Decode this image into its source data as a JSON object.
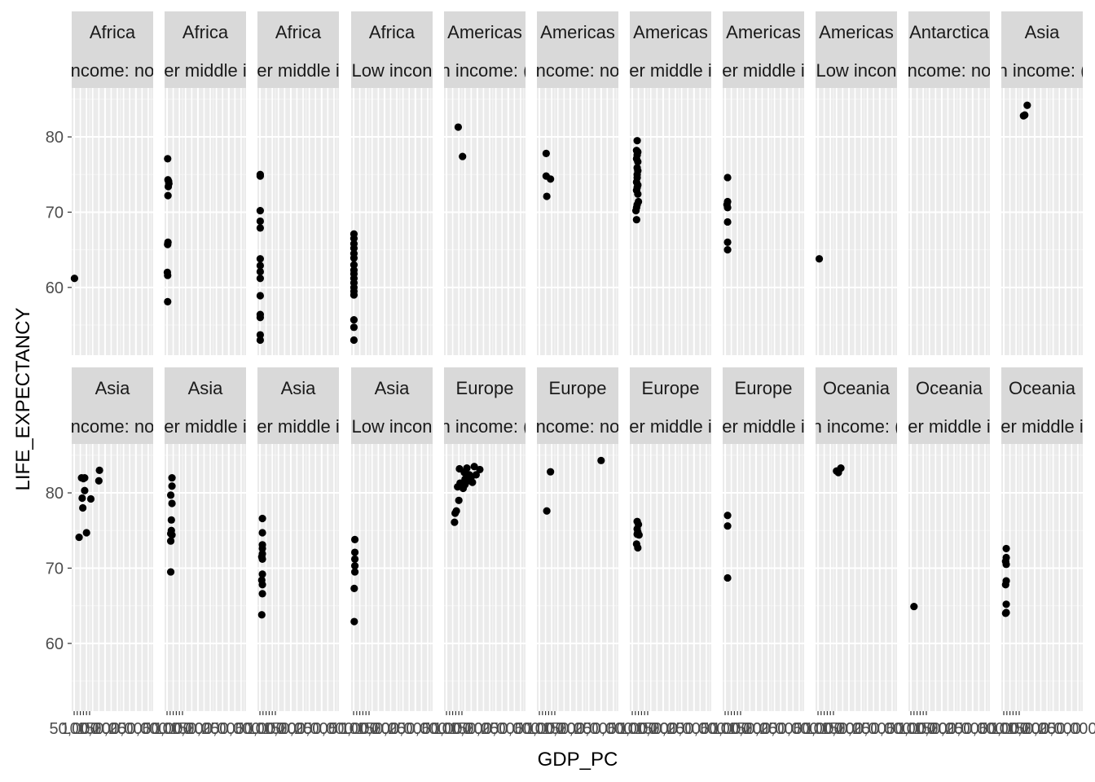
{
  "chart_data": {
    "type": "scatter",
    "title": "",
    "xlabel": "GDP_PC",
    "ylabel": "LIFE_EXPECTANCY",
    "ylim": [
      51,
      86.5
    ],
    "xlim": [
      -4000,
      128000
    ],
    "y_ticks": [
      60,
      70,
      80
    ],
    "x_tick_labels_overlapping": [
      "50,000",
      "100,000",
      "150,000",
      "200,000",
      "250,000"
    ],
    "x_tick_values": [
      0,
      50000,
      100000
    ],
    "grid": true,
    "facet_layout": {
      "rows": 2,
      "cols": 11
    },
    "panels": [
      {
        "region": "Africa",
        "income": "High income: nonOECD",
        "income_shown": "ncome: no",
        "points": [
          [
            500,
            61.2
          ]
        ]
      },
      {
        "region": "Africa",
        "income": "Upper middle income",
        "income_shown": "er middle i",
        "points": [
          [
            1000,
            77.1
          ],
          [
            1500,
            74.3
          ],
          [
            2500,
            74.1
          ],
          [
            3000,
            73.8
          ],
          [
            2000,
            73.4
          ],
          [
            1500,
            72.2
          ],
          [
            1500,
            66.0
          ],
          [
            1000,
            65.7
          ],
          [
            500,
            62.0
          ],
          [
            1000,
            61.6
          ],
          [
            1000,
            58.1
          ]
        ]
      },
      {
        "region": "Africa",
        "income": "Lower middle income",
        "income_shown": "er middle i",
        "points": [
          [
            500,
            75.0
          ],
          [
            500,
            74.8
          ],
          [
            500,
            70.2
          ],
          [
            500,
            68.8
          ],
          [
            500,
            67.9
          ],
          [
            500,
            63.8
          ],
          [
            500,
            62.9
          ],
          [
            500,
            62.1
          ],
          [
            500,
            61.2
          ],
          [
            500,
            58.9
          ],
          [
            500,
            56.4
          ],
          [
            500,
            56.0
          ],
          [
            500,
            53.7
          ],
          [
            500,
            53.0
          ]
        ]
      },
      {
        "region": "Africa",
        "income": "Low income",
        "income_shown": "Low incon",
        "points": [
          [
            500,
            67.1
          ],
          [
            500,
            66.5
          ],
          [
            500,
            65.8
          ],
          [
            500,
            65.2
          ],
          [
            500,
            64.5
          ],
          [
            500,
            63.9
          ],
          [
            500,
            63.0
          ],
          [
            500,
            62.3
          ],
          [
            500,
            61.8
          ],
          [
            500,
            61.2
          ],
          [
            500,
            60.6
          ],
          [
            500,
            60.0
          ],
          [
            500,
            59.5
          ],
          [
            500,
            59.0
          ],
          [
            500,
            55.7
          ],
          [
            500,
            54.7
          ],
          [
            500,
            53.0
          ]
        ]
      },
      {
        "region": "Americas",
        "income": "High income: OECD",
        "income_shown": "n income: (",
        "points": [
          [
            19000,
            81.3
          ],
          [
            26000,
            77.4
          ]
        ]
      },
      {
        "region": "Americas",
        "income": "High income: nonOECD",
        "income_shown": "ncome: no",
        "points": [
          [
            11000,
            77.8
          ],
          [
            11000,
            74.8
          ],
          [
            18000,
            74.4
          ],
          [
            12000,
            72.1
          ]
        ]
      },
      {
        "region": "Americas",
        "income": "Upper middle income",
        "income_shown": "er middle i",
        "points": [
          [
            8000,
            79.5
          ],
          [
            7000,
            78.2
          ],
          [
            9000,
            78.0
          ],
          [
            8000,
            77.6
          ],
          [
            7000,
            77.1
          ],
          [
            9000,
            76.7
          ],
          [
            8000,
            75.9
          ],
          [
            9000,
            75.5
          ],
          [
            8000,
            75.0
          ],
          [
            8000,
            74.6
          ],
          [
            7000,
            74.0
          ],
          [
            9000,
            73.6
          ],
          [
            8000,
            73.3
          ],
          [
            7000,
            72.9
          ],
          [
            9000,
            72.4
          ],
          [
            10000,
            71.4
          ],
          [
            8000,
            71.0
          ],
          [
            7000,
            70.6
          ],
          [
            6000,
            70.2
          ],
          [
            7000,
            69.0
          ]
        ]
      },
      {
        "region": "Americas",
        "income": "Lower middle income",
        "income_shown": "er middle i",
        "points": [
          [
            4000,
            74.6
          ],
          [
            4000,
            71.4
          ],
          [
            3000,
            71.0
          ],
          [
            4000,
            70.6
          ],
          [
            4000,
            68.7
          ],
          [
            4000,
            66.0
          ],
          [
            4000,
            65.0
          ]
        ]
      },
      {
        "region": "Americas",
        "income": "Low income",
        "income_shown": "Low incon",
        "points": [
          [
            2000,
            63.8
          ]
        ]
      },
      {
        "region": "Antarctica",
        "income": "High income: nonOECD",
        "income_shown": "ncome: no",
        "points": []
      },
      {
        "region": "Asia",
        "income": "High income: OECD",
        "income_shown": "n income: (",
        "points": [
          [
            38000,
            84.2
          ],
          [
            34000,
            82.9
          ],
          [
            32000,
            82.8
          ]
        ]
      },
      {
        "region": "Asia",
        "income": "High income: nonOECD",
        "income_shown": "ncome: no",
        "points": [
          [
            12000,
            82.0
          ],
          [
            17000,
            82.0
          ],
          [
            15000,
            81.9
          ],
          [
            41000,
            83.0
          ],
          [
            40000,
            81.6
          ],
          [
            17000,
            80.3
          ],
          [
            13000,
            79.3
          ],
          [
            27000,
            79.2
          ],
          [
            14000,
            78.0
          ],
          [
            20000,
            74.7
          ],
          [
            8000,
            74.1
          ]
        ]
      },
      {
        "region": "Asia",
        "income": "Upper middle income",
        "income_shown": "er middle i",
        "points": [
          [
            8000,
            82.0
          ],
          [
            8000,
            80.9
          ],
          [
            6000,
            79.7
          ],
          [
            8000,
            78.6
          ],
          [
            7000,
            76.4
          ],
          [
            7000,
            75.0
          ],
          [
            6000,
            74.6
          ],
          [
            8000,
            74.4
          ],
          [
            6000,
            73.6
          ],
          [
            6000,
            69.5
          ]
        ]
      },
      {
        "region": "Asia",
        "income": "Lower middle income",
        "income_shown": "er middle i",
        "points": [
          [
            4000,
            76.6
          ],
          [
            4000,
            74.7
          ],
          [
            4000,
            73.1
          ],
          [
            4000,
            72.6
          ],
          [
            4000,
            71.9
          ],
          [
            3000,
            71.5
          ],
          [
            4000,
            71.2
          ],
          [
            4000,
            69.2
          ],
          [
            3000,
            68.4
          ],
          [
            4000,
            67.8
          ],
          [
            4000,
            66.6
          ],
          [
            3000,
            63.8
          ]
        ]
      },
      {
        "region": "Asia",
        "income": "Low income",
        "income_shown": "Low incon",
        "points": [
          [
            2000,
            73.8
          ],
          [
            2000,
            72.1
          ],
          [
            2000,
            71.2
          ],
          [
            2000,
            70.3
          ],
          [
            2000,
            69.5
          ],
          [
            1000,
            67.3
          ],
          [
            1000,
            62.9
          ]
        ]
      },
      {
        "region": "Europe",
        "income": "High income: OECD",
        "income_shown": "n income: (",
        "points": [
          [
            21000,
            83.2
          ],
          [
            33000,
            83.3
          ],
          [
            45000,
            83.5
          ],
          [
            54000,
            83.1
          ],
          [
            29000,
            82.7
          ],
          [
            37000,
            82.4
          ],
          [
            48000,
            82.4
          ],
          [
            40000,
            82.1
          ],
          [
            30000,
            81.8
          ],
          [
            35000,
            81.6
          ],
          [
            42000,
            81.4
          ],
          [
            22000,
            81.3
          ],
          [
            30000,
            81.1
          ],
          [
            18000,
            80.8
          ],
          [
            27000,
            80.6
          ],
          [
            20000,
            79.0
          ],
          [
            16000,
            77.6
          ],
          [
            14000,
            77.3
          ],
          [
            13000,
            76.1
          ]
        ]
      },
      {
        "region": "Europe",
        "income": "High income: nonOECD",
        "income_shown": "ncome: no",
        "points": [
          [
            18000,
            82.8
          ],
          [
            100000,
            84.3
          ],
          [
            12000,
            77.6
          ]
        ]
      },
      {
        "region": "Europe",
        "income": "Upper middle income",
        "income_shown": "er middle i",
        "points": [
          [
            8000,
            76.2
          ],
          [
            10000,
            75.8
          ],
          [
            8000,
            75.2
          ],
          [
            9000,
            74.8
          ],
          [
            11000,
            74.4
          ],
          [
            8000,
            74.5
          ],
          [
            7000,
            73.2
          ],
          [
            9000,
            72.7
          ]
        ]
      },
      {
        "region": "Europe",
        "income": "Lower middle income",
        "income_shown": "er middle i",
        "points": [
          [
            4000,
            77.0
          ],
          [
            4000,
            75.6
          ],
          [
            4000,
            68.7
          ]
        ]
      },
      {
        "region": "Oceania",
        "income": "High income: OECD",
        "income_shown": "n income: (",
        "points": [
          [
            37000,
            83.3
          ],
          [
            30000,
            82.9
          ],
          [
            33000,
            82.7
          ]
        ]
      },
      {
        "region": "Oceania",
        "income": "Upper middle income",
        "income_shown": "er middle i",
        "points": [
          [
            5000,
            64.9
          ]
        ]
      },
      {
        "region": "Oceania",
        "income": "Lower middle income",
        "income_shown": "er middle i",
        "points": [
          [
            4000,
            72.6
          ],
          [
            4000,
            71.4
          ],
          [
            3000,
            70.9
          ],
          [
            4000,
            70.5
          ],
          [
            4000,
            68.3
          ],
          [
            3000,
            67.8
          ],
          [
            4000,
            65.2
          ],
          [
            4000,
            64.1
          ],
          [
            3000,
            64.0
          ]
        ]
      }
    ]
  }
}
